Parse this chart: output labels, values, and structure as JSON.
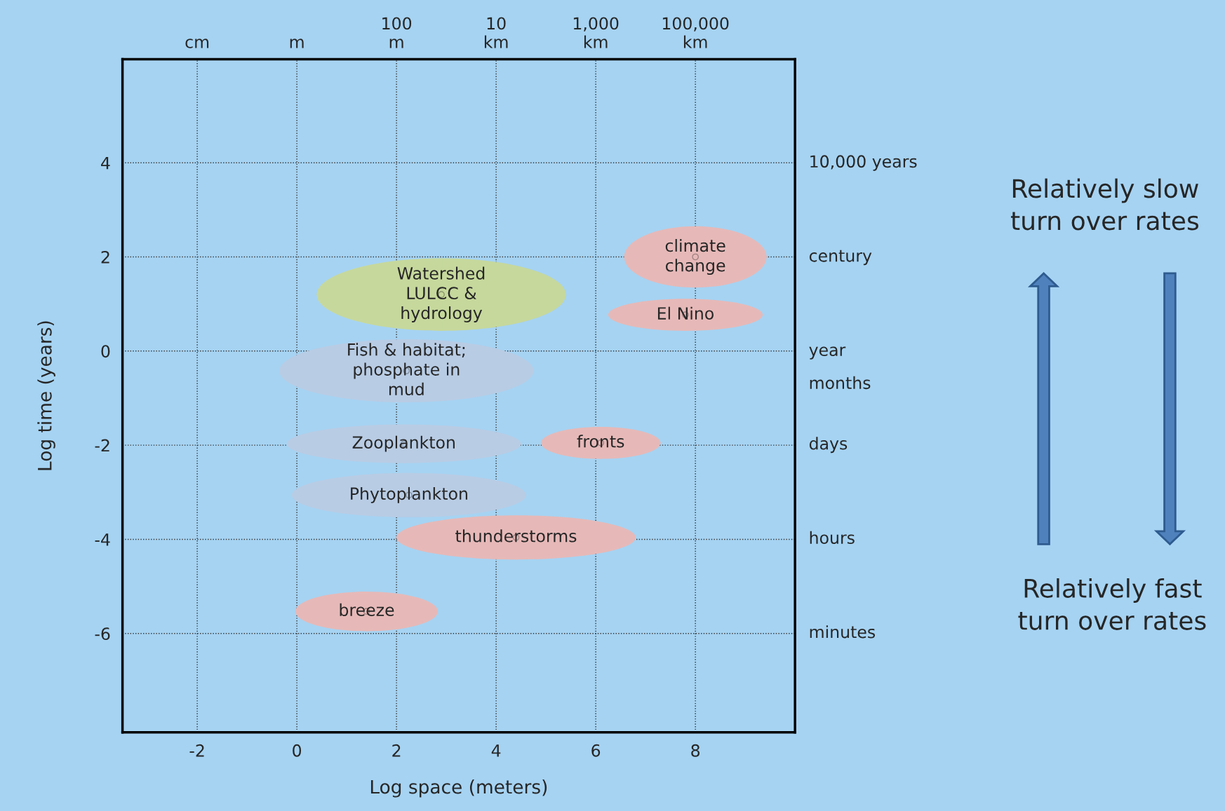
{
  "chart_data": {
    "type": "scatter",
    "xlabel": "Log space (meters)",
    "ylabel": "Log time (years)",
    "x": [
      8.0,
      2.9,
      7.8,
      2.2,
      2.15,
      6.1,
      2.25,
      4.4,
      1.4
    ],
    "values": [
      2.0,
      1.2,
      0.77,
      -0.42,
      -1.97,
      -1.95,
      -3.06,
      -3.96,
      -5.53
    ],
    "xerrors": [
      1.43,
      2.5,
      1.55,
      2.55,
      2.35,
      1.2,
      2.35,
      2.4,
      1.43
    ],
    "errors": [
      0.65,
      0.77,
      0.34,
      0.67,
      0.41,
      0.34,
      0.47,
      0.47,
      0.42
    ],
    "colors": [
      "#e6b9b8",
      "#c6d89c",
      "#e6b9b8",
      "#b8cce4",
      "#b8cce4",
      "#e6b9b8",
      "#b8cce4",
      "#e6b9b8",
      "#e6b9b8"
    ],
    "annotations": [
      {
        "text": "climate\nchange",
        "x": 8.0,
        "y": 2.0
      },
      {
        "text": "Watershed\nLULCC &\nhydrology",
        "x": 2.9,
        "y": 1.2
      },
      {
        "text": "El Nino",
        "x": 7.8,
        "y": 0.77
      },
      {
        "text": "Fish & habitat;\nphosphate in\nmud",
        "x": 2.2,
        "y": -0.42
      },
      {
        "text": "Zooplankton",
        "x": 2.15,
        "y": -1.97
      },
      {
        "text": "fronts",
        "x": 6.1,
        "y": -1.95
      },
      {
        "text": "Phytoplankton",
        "x": 2.25,
        "y": -3.06
      },
      {
        "text": "thunderstorms",
        "x": 4.4,
        "y": -3.96
      },
      {
        "text": "breeze",
        "x": 1.4,
        "y": -5.53
      },
      "cm",
      "m",
      "100\nm",
      "10\nkm",
      "1,000\nkm",
      "100,000\nkm",
      "10,000 years",
      "century",
      "year",
      "months",
      "days",
      "hours",
      "minutes",
      "Relatively slow\nturn over rates",
      "Relatively fast\nturn over rates"
    ],
    "xlim": [
      -3.5,
      10.0
    ],
    "ylim": [
      -8.1,
      6.2
    ],
    "xticks": [
      -2,
      0,
      2,
      4,
      6,
      8
    ],
    "yticks": [
      -6,
      -4,
      -2,
      0,
      2,
      4
    ],
    "grid": true
  }
}
